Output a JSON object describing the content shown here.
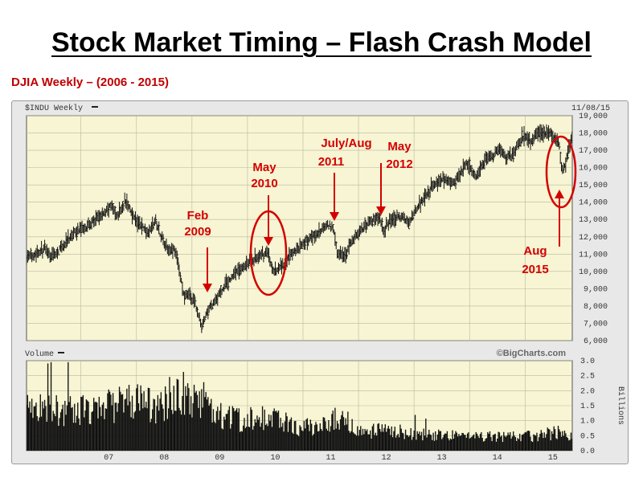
{
  "slide": {
    "title": "Stock Market Timing – Flash Crash Model",
    "subtitle": "DJIA Weekly – (2006 - 2015)"
  },
  "chart_header": {
    "symbol_label": "$INDU Weekly",
    "date_label": "11/08/15",
    "volume_label": "Volume",
    "watermark": "©BigCharts.com",
    "volume_unit": "Billions"
  },
  "colors": {
    "annotation": "#d40000",
    "panel": "#f7f5d3",
    "bars": "#111111",
    "grid": "#b8b8a0"
  },
  "chart_data": [
    {
      "type": "bar",
      "panel": "price",
      "x_tick_labels": [
        "07",
        "08",
        "09",
        "10",
        "11",
        "12",
        "13",
        "14",
        "15"
      ],
      "x_ticks_year": [
        2007,
        2008,
        2009,
        2010,
        2011,
        2012,
        2013,
        2014,
        2015
      ],
      "xlim": [
        2006.02,
        2015.85
      ],
      "ylim": [
        6000,
        19000
      ],
      "y_ticks": [
        6000,
        7000,
        8000,
        9000,
        10000,
        11000,
        12000,
        13000,
        14000,
        15000,
        16000,
        17000,
        18000,
        19000
      ],
      "y_tick_labels": [
        "6,000",
        "7,000",
        "8,000",
        "9,000",
        "10,000",
        "11,000",
        "12,000",
        "13,000",
        "14,000",
        "15,000",
        "16,000",
        "17,000",
        "18,000",
        "19,000"
      ],
      "grid": true,
      "series_path": [
        [
          2006.02,
          10800
        ],
        [
          2006.35,
          11300
        ],
        [
          2006.45,
          10800
        ],
        [
          2006.6,
          11200
        ],
        [
          2006.9,
          12300
        ],
        [
          2007.15,
          12700
        ],
        [
          2007.4,
          13300
        ],
        [
          2007.55,
          13800
        ],
        [
          2007.65,
          13200
        ],
        [
          2007.8,
          14100
        ],
        [
          2007.9,
          13500
        ],
        [
          2008.0,
          12900
        ],
        [
          2008.2,
          12300
        ],
        [
          2008.35,
          12900
        ],
        [
          2008.45,
          12000
        ],
        [
          2008.55,
          11400
        ],
        [
          2008.7,
          11200
        ],
        [
          2008.78,
          9900
        ],
        [
          2008.85,
          8600
        ],
        [
          2008.95,
          8700
        ],
        [
          2009.05,
          8200
        ],
        [
          2009.17,
          6800
        ],
        [
          2009.3,
          7800
        ],
        [
          2009.45,
          8500
        ],
        [
          2009.6,
          9200
        ],
        [
          2009.8,
          10000
        ],
        [
          2010.0,
          10500
        ],
        [
          2010.3,
          11000
        ],
        [
          2010.36,
          11200
        ],
        [
          2010.45,
          10000
        ],
        [
          2010.55,
          10100
        ],
        [
          2010.65,
          10400
        ],
        [
          2010.8,
          11000
        ],
        [
          2011.0,
          11600
        ],
        [
          2011.3,
          12300
        ],
        [
          2011.45,
          12700
        ],
        [
          2011.55,
          12400
        ],
        [
          2011.62,
          11000
        ],
        [
          2011.75,
          10900
        ],
        [
          2011.9,
          11900
        ],
        [
          2012.2,
          12900
        ],
        [
          2012.38,
          13100
        ],
        [
          2012.45,
          12400
        ],
        [
          2012.6,
          13000
        ],
        [
          2012.8,
          13200
        ],
        [
          2012.9,
          12700
        ],
        [
          2013.0,
          13400
        ],
        [
          2013.3,
          14800
        ],
        [
          2013.5,
          15400
        ],
        [
          2013.7,
          15000
        ],
        [
          2013.95,
          16300
        ],
        [
          2014.1,
          15500
        ],
        [
          2014.3,
          16500
        ],
        [
          2014.55,
          17000
        ],
        [
          2014.65,
          16600
        ],
        [
          2014.8,
          16800
        ],
        [
          2014.95,
          17800
        ],
        [
          2015.1,
          17500
        ],
        [
          2015.3,
          18100
        ],
        [
          2015.45,
          17900
        ],
        [
          2015.55,
          17600
        ],
        [
          2015.62,
          17200
        ],
        [
          2015.66,
          15700
        ],
        [
          2015.72,
          16200
        ],
        [
          2015.8,
          17200
        ],
        [
          2015.85,
          17700
        ]
      ]
    },
    {
      "type": "bar",
      "panel": "volume",
      "ylim": [
        0,
        3.0
      ],
      "y_ticks": [
        0,
        0.5,
        1.0,
        1.5,
        2.0,
        2.5,
        3.0
      ],
      "y_tick_labels": [
        "0.0",
        "0.5",
        "1.0",
        "1.5",
        "2.0",
        "2.5",
        "3.0"
      ],
      "ylabel": "Billions",
      "volume_level": [
        [
          2006.02,
          1.6
        ],
        [
          2006.5,
          1.5
        ],
        [
          2007.0,
          1.45
        ],
        [
          2007.5,
          1.6
        ],
        [
          2008.0,
          1.75
        ],
        [
          2008.4,
          1.6
        ],
        [
          2008.75,
          2.2
        ],
        [
          2009.0,
          1.9
        ],
        [
          2009.3,
          1.5
        ],
        [
          2009.8,
          1.1
        ],
        [
          2010.4,
          1.2
        ],
        [
          2010.8,
          0.9
        ],
        [
          2011.3,
          0.8
        ],
        [
          2011.65,
          1.25
        ],
        [
          2012.0,
          0.75
        ],
        [
          2012.5,
          0.7
        ],
        [
          2013.0,
          0.6
        ],
        [
          2014.0,
          0.5
        ],
        [
          2015.0,
          0.5
        ],
        [
          2015.62,
          0.65
        ],
        [
          2015.85,
          0.5
        ]
      ]
    }
  ],
  "annotations": [
    {
      "id": "feb-2009",
      "lines": [
        "Feb",
        "2009"
      ]
    },
    {
      "id": "may-2010",
      "lines": [
        "May",
        "2010"
      ]
    },
    {
      "id": "jul-aug-2011",
      "lines": [
        "July/Aug",
        "2011"
      ]
    },
    {
      "id": "may-2012",
      "lines": [
        "May",
        "2012"
      ]
    },
    {
      "id": "aug-2015",
      "lines": [
        "Aug",
        "2015"
      ]
    }
  ]
}
